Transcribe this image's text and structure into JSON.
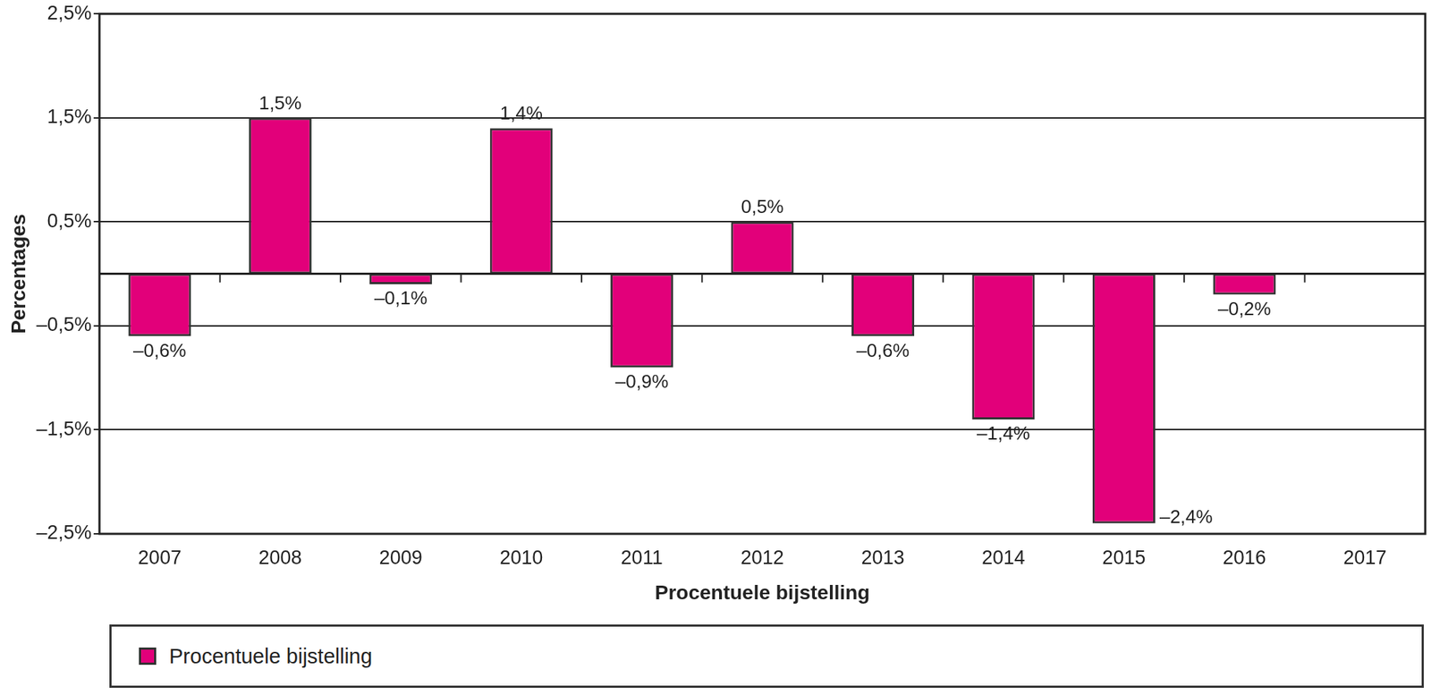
{
  "chart_data": {
    "type": "bar",
    "categories": [
      "2007",
      "2008",
      "2009",
      "2010",
      "2011",
      "2012",
      "2013",
      "2014",
      "2015",
      "2016",
      "2017"
    ],
    "series": [
      {
        "name": "Procentuele bijstelling",
        "color": "#e2007a",
        "values": [
          -0.6,
          1.5,
          -0.1,
          1.4,
          -0.9,
          0.5,
          -0.6,
          -1.4,
          -2.4,
          -0.2,
          null
        ],
        "value_labels": [
          "–0,6%",
          "1,5%",
          "–0,1%",
          "1,4%",
          "–0,9%",
          "0,5%",
          "–0,6%",
          "–1,4%",
          "–2,4%",
          "–0,2%",
          null
        ]
      }
    ],
    "x_label": "Procentuele bijstelling",
    "y_label": "Percentages",
    "ylim": [
      -2.5,
      2.5
    ],
    "yticks": [
      {
        "value": -2.5,
        "label": "–2,5%"
      },
      {
        "value": -1.5,
        "label": "–1,5%"
      },
      {
        "value": -0.5,
        "label": "–0,5%"
      },
      {
        "value": 0.5,
        "label": "0,5%"
      },
      {
        "value": 1.5,
        "label": "1,5%"
      },
      {
        "value": 2.5,
        "label": "2,5%"
      }
    ],
    "grid": true,
    "legend": "bottom",
    "data_labels": true
  }
}
